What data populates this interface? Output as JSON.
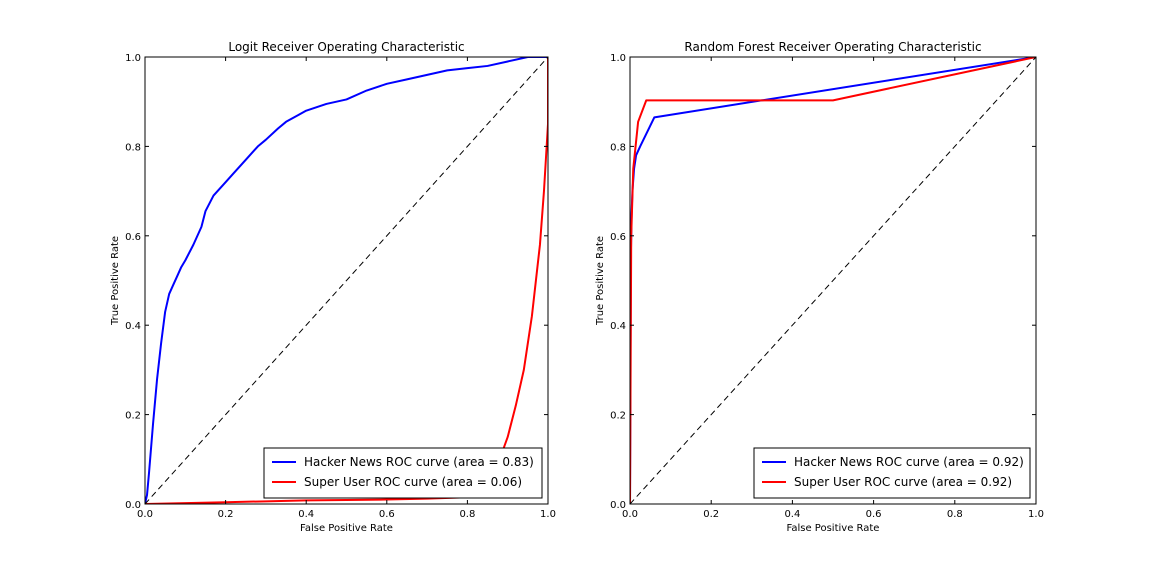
{
  "chart_data": [
    {
      "type": "line",
      "title": "Logit Receiver Operating Characteristic",
      "xlabel": "False Positive Rate",
      "ylabel": "True Positive Rate",
      "xlim": [
        0.0,
        1.0
      ],
      "ylim": [
        0.0,
        1.0
      ],
      "xticks": [
        "0.0",
        "0.2",
        "0.4",
        "0.6",
        "0.8",
        "1.0"
      ],
      "yticks": [
        "0.0",
        "0.2",
        "0.4",
        "0.6",
        "0.8",
        "1.0"
      ],
      "grid": false,
      "legend_position": "bottom-right",
      "series": [
        {
          "name": "Hacker News ROC curve (area = 0.83)",
          "color": "#0000ff",
          "x": [
            0.0,
            0.005,
            0.01,
            0.02,
            0.03,
            0.04,
            0.05,
            0.06,
            0.07,
            0.08,
            0.09,
            0.1,
            0.12,
            0.14,
            0.15,
            0.17,
            0.2,
            0.22,
            0.25,
            0.28,
            0.3,
            0.33,
            0.35,
            0.38,
            0.4,
            0.45,
            0.5,
            0.55,
            0.6,
            0.65,
            0.7,
            0.75,
            0.8,
            0.85,
            0.9,
            0.95,
            1.0
          ],
          "y": [
            0.0,
            0.02,
            0.07,
            0.18,
            0.28,
            0.36,
            0.43,
            0.47,
            0.49,
            0.51,
            0.53,
            0.545,
            0.58,
            0.62,
            0.655,
            0.69,
            0.72,
            0.74,
            0.77,
            0.8,
            0.815,
            0.84,
            0.855,
            0.87,
            0.88,
            0.895,
            0.905,
            0.925,
            0.94,
            0.95,
            0.96,
            0.97,
            0.975,
            0.98,
            0.99,
            1.0,
            1.0
          ]
        },
        {
          "name": "Super User ROC curve (area = 0.06)",
          "color": "#ff0000",
          "x": [
            0.0,
            0.1,
            0.2,
            0.3,
            0.4,
            0.5,
            0.6,
            0.7,
            0.8,
            0.84,
            0.86,
            0.88,
            0.9,
            0.92,
            0.94,
            0.95,
            0.96,
            0.97,
            0.98,
            0.99,
            1.0,
            1.0
          ],
          "y": [
            0.0,
            0.002,
            0.004,
            0.006,
            0.008,
            0.009,
            0.01,
            0.012,
            0.015,
            0.02,
            0.05,
            0.1,
            0.15,
            0.22,
            0.3,
            0.36,
            0.42,
            0.5,
            0.58,
            0.7,
            0.85,
            1.0
          ]
        },
        {
          "name": "",
          "color": "#000000",
          "dashed": true,
          "x": [
            0.0,
            1.0
          ],
          "y": [
            0.0,
            1.0
          ]
        }
      ]
    },
    {
      "type": "line",
      "title": "Random Forest Receiver Operating Characteristic",
      "xlabel": "False Positive Rate",
      "ylabel": "True Positive Rate",
      "xlim": [
        0.0,
        1.0
      ],
      "ylim": [
        0.0,
        1.0
      ],
      "xticks": [
        "0.0",
        "0.2",
        "0.4",
        "0.6",
        "0.8",
        "1.0"
      ],
      "yticks": [
        "0.0",
        "0.2",
        "0.4",
        "0.6",
        "0.8",
        "1.0"
      ],
      "grid": false,
      "legend_position": "bottom-right",
      "series": [
        {
          "name": "Hacker News ROC curve (area = 0.92)",
          "color": "#0000ff",
          "x": [
            0.0,
            0.002,
            0.004,
            0.006,
            0.01,
            0.015,
            0.025,
            0.06,
            1.0
          ],
          "y": [
            0.0,
            0.55,
            0.65,
            0.7,
            0.75,
            0.78,
            0.8,
            0.865,
            1.0
          ],
          "alt_dummy": null
        },
        {
          "name": "Super User ROC curve (area = 0.92)",
          "color": "#ff0000",
          "x": [
            0.0,
            0.003,
            0.008,
            0.02,
            0.04,
            0.5,
            1.0
          ],
          "y": [
            0.0,
            0.6,
            0.75,
            0.855,
            0.903,
            0.903,
            1.0
          ]
        },
        {
          "name": "",
          "color": "#000000",
          "dashed": true,
          "x": [
            0.0,
            1.0
          ],
          "y": [
            0.0,
            1.0
          ]
        }
      ]
    }
  ]
}
